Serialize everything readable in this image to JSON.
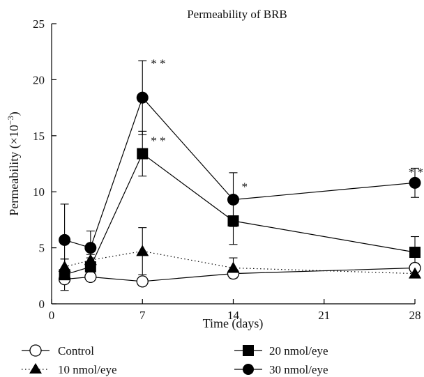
{
  "chart_data": {
    "type": "line",
    "title": "Permeability of BRB",
    "xlabel": "Time (days)",
    "ylabel": "Permeability (×10",
    "ylabel_sup": "−3",
    "ylabel_close": ")",
    "xlim": [
      0,
      28
    ],
    "ylim": [
      0,
      25
    ],
    "xticks": [
      0,
      7,
      14,
      21,
      28
    ],
    "yticks": [
      0,
      5,
      10,
      15,
      20,
      25
    ],
    "grid": false,
    "legend_position": "bottom",
    "series": [
      {
        "name": "Control",
        "marker": "circle-open",
        "line": "solid",
        "color": "#000000",
        "x": [
          1,
          3,
          7,
          14,
          28
        ],
        "y": [
          2.2,
          2.4,
          2.0,
          2.7,
          3.2
        ],
        "err": [
          0.3,
          0.3,
          0.3,
          0.3,
          0.4
        ]
      },
      {
        "name": "10 nmol/eye",
        "marker": "triangle-filled",
        "line": "dotted",
        "color": "#000000",
        "x": [
          1,
          3,
          7,
          14,
          28
        ],
        "y": [
          3.3,
          3.9,
          4.7,
          3.2,
          2.7
        ],
        "err": [
          0.7,
          0.5,
          2.1,
          0.9,
          0.2
        ]
      },
      {
        "name": "20 nmol/eye",
        "marker": "square-filled",
        "line": "solid",
        "color": "#000000",
        "x": [
          1,
          3,
          7,
          14,
          28
        ],
        "y": [
          2.6,
          3.3,
          13.4,
          7.4,
          4.6
        ],
        "err": [
          1.4,
          0.8,
          2.0,
          2.1,
          1.4
        ]
      },
      {
        "name": "30 nmol/eye",
        "marker": "circle-filled",
        "line": "solid",
        "color": "#000000",
        "x": [
          1,
          3,
          7,
          14,
          28
        ],
        "y": [
          5.7,
          5.0,
          18.4,
          9.3,
          10.8
        ],
        "err": [
          3.2,
          1.5,
          3.3,
          2.4,
          1.3
        ]
      }
    ],
    "annotations": [
      {
        "text": "* *",
        "x": 7,
        "y": 21.6
      },
      {
        "text": "* *",
        "x": 7,
        "y": 14.7
      },
      {
        "text": "*",
        "x": 14,
        "y": 10.6
      },
      {
        "text": "* *",
        "x": 28,
        "y": 11.9
      }
    ]
  }
}
